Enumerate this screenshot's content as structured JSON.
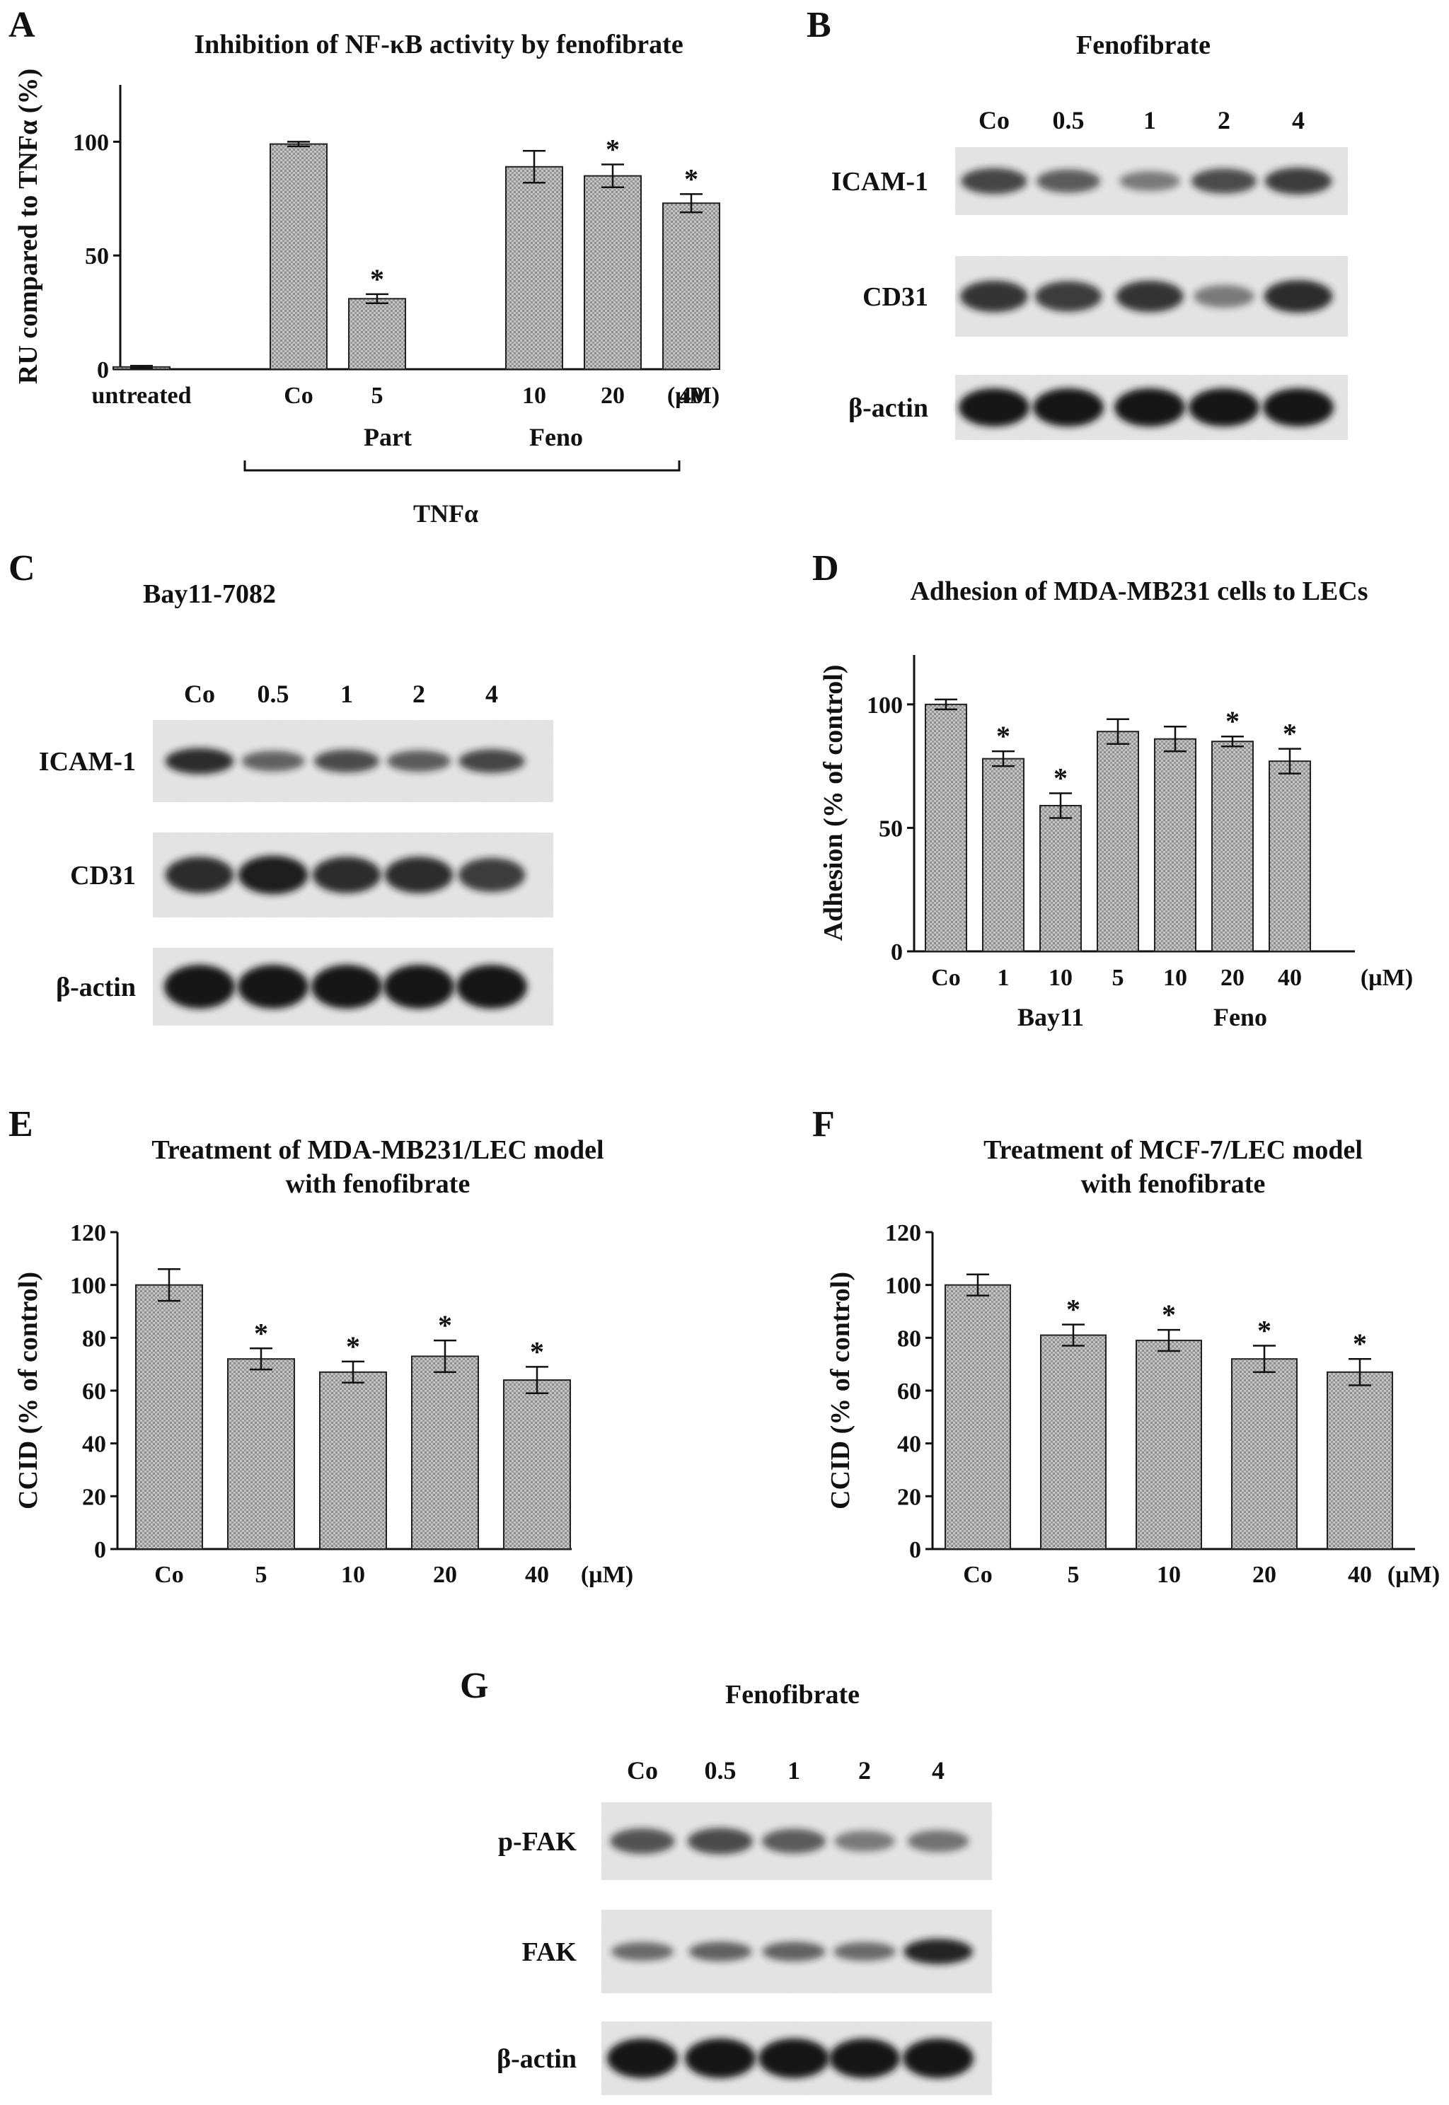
{
  "panels": {
    "A": "A",
    "B": "B",
    "C": "C",
    "D": "D",
    "E": "E",
    "F": "F",
    "G": "G"
  },
  "chart_data": [
    {
      "panel": "A",
      "type": "bar",
      "title": "Inhibition of NF-κB activity by fenofibrate",
      "ylabel": "RU compared to TNFα (%)",
      "unit_label": "(µM)",
      "ylim": [
        0,
        125
      ],
      "yticks": [
        0,
        50,
        100
      ],
      "categories": [
        "untreated",
        "Co",
        "5",
        "10",
        "20",
        "40"
      ],
      "values": [
        1,
        99,
        31,
        89,
        85,
        73
      ],
      "errors": [
        0.5,
        1,
        2,
        7,
        5,
        4
      ],
      "significant": [
        false,
        false,
        true,
        false,
        true,
        true
      ],
      "group_labels": [
        "Part",
        "Feno"
      ],
      "bracket_label": "TNFα",
      "grid": false
    },
    {
      "panel": "D",
      "type": "bar",
      "title": "Adhesion of MDA-MB231 cells to LECs",
      "ylabel": "Adhesion (% of control)",
      "unit_label": "(µM)",
      "ylim": [
        0,
        120
      ],
      "yticks": [
        0,
        50,
        100
      ],
      "categories": [
        "Co",
        "1",
        "10",
        "5",
        "10",
        "20",
        "40"
      ],
      "values": [
        100,
        78,
        59,
        89,
        86,
        85,
        77
      ],
      "errors": [
        2,
        3,
        5,
        5,
        5,
        2,
        5
      ],
      "significant": [
        false,
        true,
        true,
        false,
        false,
        true,
        true
      ],
      "group_labels": [
        "Bay11",
        "Feno"
      ],
      "grid": false
    },
    {
      "panel": "E",
      "type": "bar",
      "title": "Treatment of MDA-MB231/LEC model\nwith fenofibrate",
      "ylabel": "CCID (% of control)",
      "unit_label": "(µM)",
      "ylim": [
        0,
        120
      ],
      "yticks": [
        0,
        20,
        40,
        60,
        80,
        100,
        120
      ],
      "categories": [
        "Co",
        "5",
        "10",
        "20",
        "40"
      ],
      "values": [
        100,
        72,
        67,
        73,
        64
      ],
      "errors": [
        6,
        4,
        4,
        6,
        5
      ],
      "significant": [
        false,
        true,
        true,
        true,
        true
      ],
      "grid": false
    },
    {
      "panel": "F",
      "type": "bar",
      "title": "Treatment of MCF-7/LEC model\nwith fenofibrate",
      "ylabel": "CCID (% of control)",
      "unit_label": "(µM)",
      "ylim": [
        0,
        120
      ],
      "yticks": [
        0,
        20,
        40,
        60,
        80,
        100,
        120
      ],
      "categories": [
        "Co",
        "5",
        "10",
        "20",
        "40"
      ],
      "values": [
        100,
        81,
        79,
        72,
        67
      ],
      "errors": [
        4,
        4,
        4,
        5,
        5
      ],
      "significant": [
        false,
        true,
        true,
        true,
        true
      ],
      "grid": false
    }
  ],
  "blots": [
    {
      "panel": "B",
      "title": "Fenofibrate",
      "lanes": [
        "Co",
        "0.5",
        "1",
        "2",
        "4"
      ],
      "rows": [
        {
          "label": "ICAM-1",
          "intensities": [
            0.7,
            0.55,
            0.35,
            0.65,
            0.75
          ]
        },
        {
          "label": "CD31",
          "intensities": [
            0.8,
            0.75,
            0.8,
            0.35,
            0.85
          ]
        },
        {
          "label": "β-actin",
          "intensities": [
            1,
            1,
            1,
            1,
            1
          ]
        }
      ]
    },
    {
      "panel": "C",
      "title": "Bay11-7082",
      "lanes": [
        "Co",
        "0.5",
        "1",
        "2",
        "4"
      ],
      "rows": [
        {
          "label": "ICAM-1",
          "intensities": [
            0.85,
            0.5,
            0.65,
            0.55,
            0.7
          ]
        },
        {
          "label": "CD31",
          "intensities": [
            0.85,
            0.95,
            0.85,
            0.85,
            0.75
          ]
        },
        {
          "label": "β-actin",
          "intensities": [
            1,
            1,
            1,
            1,
            1
          ]
        }
      ]
    },
    {
      "panel": "G",
      "title": "Fenofibrate",
      "lanes": [
        "Co",
        "0.5",
        "1",
        "2",
        "4"
      ],
      "rows": [
        {
          "label": "p-FAK",
          "intensities": [
            0.6,
            0.65,
            0.55,
            0.35,
            0.4
          ]
        },
        {
          "label": "FAK",
          "intensities": [
            0.45,
            0.5,
            0.5,
            0.45,
            0.9
          ]
        },
        {
          "label": "β-actin",
          "intensities": [
            1,
            1,
            1,
            1,
            1
          ]
        }
      ]
    }
  ],
  "colors": {
    "bar_fill": "#b9b9b9",
    "bar_stroke": "#222222",
    "blot_bg": "#e6e6e6",
    "band": "#151515"
  }
}
